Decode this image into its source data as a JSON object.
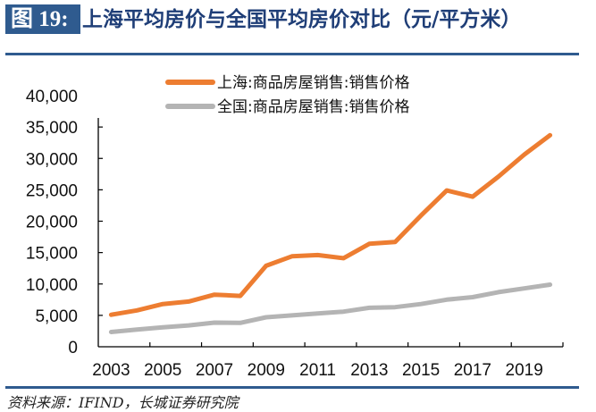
{
  "header": {
    "figure_label": "图 19:",
    "title": "上海平均房价与全国平均房价对比（元/平方米）"
  },
  "footer": {
    "source": "资料来源：IFIND，长城证券研究院"
  },
  "colors": {
    "brand": "#2f5b8f",
    "title_text": "#1f3e77",
    "shanghai": "#ed7d31",
    "national": "#b4b4b4",
    "axis": "#000000"
  },
  "chart_data": {
    "type": "line",
    "title": "上海平均房价与全国平均房价对比（元/平方米）",
    "xlabel": "",
    "ylabel": "",
    "x": [
      2003,
      2004,
      2005,
      2006,
      2007,
      2008,
      2009,
      2010,
      2011,
      2012,
      2013,
      2014,
      2015,
      2016,
      2017,
      2018,
      2019,
      2020
    ],
    "x_tick_labels": [
      "2003",
      "2005",
      "2007",
      "2009",
      "2011",
      "2013",
      "2015",
      "2017",
      "2019"
    ],
    "y_tick_labels": [
      "0",
      "5,000",
      "10,000",
      "15,000",
      "20,000",
      "25,000",
      "30,000",
      "35,000",
      "40,000"
    ],
    "y_ticks": [
      0,
      5000,
      10000,
      15000,
      20000,
      25000,
      30000,
      35000,
      40000
    ],
    "ylim": [
      0,
      40000
    ],
    "grid": false,
    "legend_position": "top-center",
    "series": [
      {
        "name": "上海:商品房屋销售:销售价格",
        "color": "#ed7d31",
        "values": [
          5100,
          5800,
          6800,
          7200,
          8300,
          8100,
          12900,
          14400,
          14600,
          14100,
          16400,
          16700,
          20900,
          24900,
          23900,
          27100,
          30600,
          33700
        ]
      },
      {
        "name": "全国:商品房屋销售:销售价格",
        "color": "#b4b4b4",
        "values": [
          2350,
          2750,
          3100,
          3400,
          3850,
          3800,
          4700,
          5000,
          5300,
          5600,
          6200,
          6300,
          6800,
          7500,
          7900,
          8700,
          9300,
          9900
        ]
      }
    ]
  }
}
